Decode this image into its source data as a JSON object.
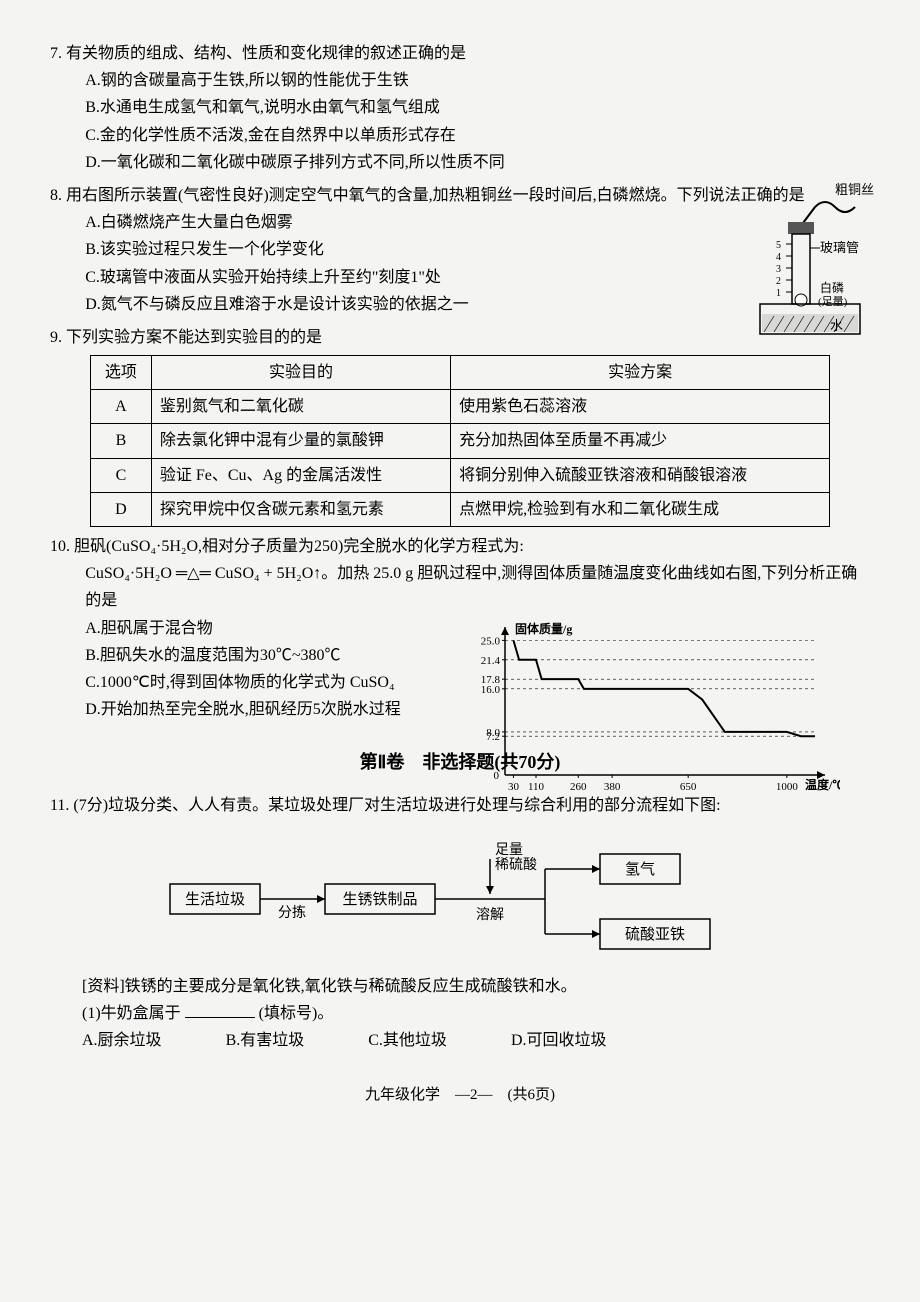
{
  "q7": {
    "num": "7.",
    "stem": "有关物质的组成、结构、性质和变化规律的叙述正确的是",
    "opts": {
      "A": "A.钢的含碳量高于生铁,所以钢的性能优于生铁",
      "B": "B.水通电生成氢气和氧气,说明水由氧气和氢气组成",
      "C": "C.金的化学性质不活泼,金在自然界中以单质形式存在",
      "D": "D.一氧化碳和二氧化碳中碳原子排列方式不同,所以性质不同"
    }
  },
  "q8": {
    "num": "8.",
    "stem": "用右图所示装置(气密性良好)测定空气中氧气的含量,加热粗铜丝一段时间后,白磷燃烧。下列说法正确的是",
    "opts": {
      "A": "A.白磷燃烧产生大量白色烟雾",
      "B": "B.该实验过程只发生一个化学变化",
      "C": "C.玻璃管中液面从实验开始持续上升至约\"刻度1\"处",
      "D": "D.氮气不与磷反应且难溶于水是设计该实验的依据之一"
    },
    "fig": {
      "label_top": "粗铜丝",
      "label_tube": "玻璃管",
      "label_p": "白磷\n(足量)",
      "label_water": "水",
      "stroke": "#000000",
      "fill_hatch": "#999999"
    }
  },
  "q9": {
    "num": "9.",
    "stem": "下列实验方案不能达到实验目的的是",
    "headers": [
      "选项",
      "实验目的",
      "实验方案"
    ],
    "rows": [
      [
        "A",
        "鉴别氮气和二氧化碳",
        "使用紫色石蕊溶液"
      ],
      [
        "B",
        "除去氯化钾中混有少量的氯酸钾",
        "充分加热固体至质量不再减少"
      ],
      [
        "C",
        "验证 Fe、Cu、Ag 的金属活泼性",
        "将铜分别伸入硫酸亚铁溶液和硝酸银溶液"
      ],
      [
        "D",
        "探究甲烷中仅含碳元素和氢元素",
        "点燃甲烷,检验到有水和二氧化碳生成"
      ]
    ]
  },
  "q10": {
    "num": "10.",
    "stem_a": "胆矾(CuSO₄·5H₂O,相对分子质量为250)完全脱水的化学方程式为:",
    "eq": "CuSO₄·5H₂O ═△═ CuSO₄ + 5H₂O↑。加热 25.0 g 胆矾过程中,测得固体质量随温度变化曲线如右图,下列分析正确的是",
    "opts": {
      "A": "A.胆矾属于混合物",
      "B": "B.胆矾失水的温度范围为30℃~380℃",
      "C": "C.1000℃时,得到固体物质的化学式为 CuSO₄",
      "D": "D.开始加热至完全脱水,胆矾经历5次脱水过程"
    },
    "chart": {
      "ylabel": "固体质量/g",
      "xlabel": "温度/℃",
      "y_ticks": [
        25.0,
        21.4,
        17.8,
        16.0,
        8.0,
        7.2,
        0
      ],
      "x_ticks": [
        30,
        110,
        260,
        380,
        650,
        1000
      ],
      "ymax": 26,
      "xmax": 1100,
      "line_color": "#000000",
      "axis_color": "#000000",
      "points": [
        [
          30,
          25.0
        ],
        [
          50,
          21.4
        ],
        [
          110,
          21.4
        ],
        [
          130,
          17.8
        ],
        [
          260,
          17.8
        ],
        [
          280,
          16.0
        ],
        [
          380,
          16.0
        ],
        [
          650,
          16.0
        ],
        [
          700,
          14
        ],
        [
          780,
          8.0
        ],
        [
          1000,
          8.0
        ],
        [
          1050,
          7.2
        ],
        [
          1100,
          7.2
        ]
      ]
    }
  },
  "section2": "第Ⅱ卷　非选择题(共70分)",
  "q11": {
    "num": "11.",
    "stem": "(7分)垃圾分类、人人有责。某垃圾处理厂对生活垃圾进行处理与综合利用的部分流程如下图:",
    "flow": {
      "box1": "生活垃圾",
      "arr1": "分拣",
      "box2": "生锈铁制品",
      "arr2_top": "足量\n稀硫酸",
      "arr2_bot": "溶解",
      "box3": "氢气",
      "box4": "硫酸亚铁",
      "stroke": "#000000"
    },
    "info": "[资料]铁锈的主要成分是氧化铁,氧化铁与稀硫酸反应生成硫酸铁和水。",
    "sub1": "(1)牛奶盒属于",
    "sub1_tail": "(填标号)。",
    "sub1_opts": {
      "A": "A.厨余垃圾",
      "B": "B.有害垃圾",
      "C": "C.其他垃圾",
      "D": "D.可回收垃圾"
    }
  },
  "footer": "九年级化学　—2—　(共6页)"
}
